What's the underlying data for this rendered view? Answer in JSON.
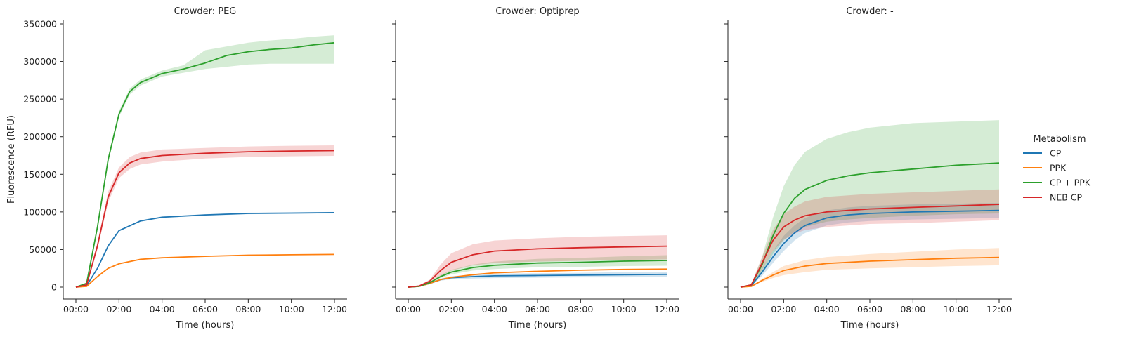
{
  "chart_data": [
    {
      "type": "line",
      "title": "Crowder: PEG",
      "xlabel": "Time (hours)",
      "ylabel": "Fluorescence (RFU)",
      "xlim": [
        0,
        12
      ],
      "ylim": [
        0,
        350000
      ],
      "x_tick_labels": [
        "00:00",
        "02:00",
        "04:00",
        "06:00",
        "08:00",
        "10:00",
        "12:00"
      ],
      "y_tick_labels": [
        "0",
        "50000",
        "100000",
        "150000",
        "200000",
        "250000",
        "300000",
        "350000"
      ],
      "grid": false,
      "series": [
        {
          "name": "CP",
          "color": "#1f77b4",
          "x": [
            0,
            0.5,
            1,
            1.5,
            2,
            3,
            4,
            6,
            8,
            10,
            12
          ],
          "y": [
            0,
            2000,
            25000,
            55000,
            75000,
            88000,
            93000,
            96000,
            98000,
            98500,
            99000
          ],
          "lower": [
            0,
            1500,
            24000,
            54000,
            74000,
            87000,
            92000,
            95000,
            97000,
            97500,
            98000
          ],
          "upper": [
            0,
            2500,
            26000,
            56000,
            76000,
            89000,
            94000,
            97000,
            99000,
            99500,
            100000
          ]
        },
        {
          "name": "PPK",
          "color": "#ff7f0e",
          "x": [
            0,
            0.5,
            1,
            1.5,
            2,
            3,
            4,
            6,
            8,
            10,
            12
          ],
          "y": [
            0,
            1000,
            14000,
            25000,
            31000,
            37000,
            39000,
            41000,
            42500,
            43000,
            43500
          ],
          "lower": [
            0,
            800,
            13500,
            24500,
            30500,
            36500,
            38500,
            40500,
            42000,
            42500,
            43000
          ],
          "upper": [
            0,
            1200,
            14500,
            25500,
            31500,
            37500,
            39500,
            41500,
            43000,
            43500,
            44000
          ]
        },
        {
          "name": "CP + PPK",
          "color": "#2ca02c",
          "x": [
            0,
            0.5,
            1,
            1.5,
            2,
            2.5,
            3,
            4,
            5,
            6,
            7,
            8,
            9,
            10,
            11,
            12
          ],
          "y": [
            0,
            5000,
            80000,
            170000,
            230000,
            260000,
            272000,
            284000,
            290000,
            298000,
            308000,
            313000,
            316000,
            318000,
            322000,
            325000
          ],
          "lower": [
            0,
            4000,
            77000,
            166000,
            226000,
            256000,
            268000,
            280000,
            285000,
            290000,
            293000,
            296000,
            297000,
            297000,
            297000,
            297000
          ],
          "upper": [
            0,
            6000,
            83000,
            174000,
            234000,
            264000,
            276000,
            288000,
            295000,
            315000,
            320000,
            325000,
            328000,
            330000,
            333000,
            335000
          ]
        },
        {
          "name": "NEB CP",
          "color": "#d62728",
          "x": [
            0,
            0.5,
            1,
            1.5,
            2,
            2.5,
            3,
            4,
            6,
            8,
            10,
            12
          ],
          "y": [
            0,
            3000,
            55000,
            120000,
            152000,
            165000,
            171000,
            175000,
            178000,
            180000,
            181000,
            181500
          ],
          "lower": [
            0,
            2000,
            50000,
            113000,
            145000,
            157000,
            163000,
            167000,
            171000,
            173000,
            174000,
            174500
          ],
          "upper": [
            0,
            4000,
            60000,
            127000,
            159000,
            173000,
            179000,
            183000,
            185000,
            187000,
            188000,
            188500
          ]
        }
      ]
    },
    {
      "type": "line",
      "title": "Crowder: Optiprep",
      "xlabel": "Time (hours)",
      "ylabel": "",
      "xlim": [
        0,
        12
      ],
      "ylim": [
        0,
        350000
      ],
      "x_tick_labels": [
        "00:00",
        "02:00",
        "04:00",
        "06:00",
        "08:00",
        "10:00",
        "12:00"
      ],
      "grid": false,
      "series": [
        {
          "name": "CP",
          "color": "#1f77b4",
          "x": [
            0,
            0.5,
            1,
            1.5,
            2,
            3,
            4,
            6,
            8,
            10,
            12
          ],
          "y": [
            0,
            1000,
            5000,
            10000,
            12500,
            14000,
            15000,
            15500,
            16000,
            16500,
            17000
          ],
          "lower": [
            0,
            700,
            4000,
            8500,
            10500,
            11500,
            12000,
            12500,
            13000,
            13000,
            13500
          ],
          "upper": [
            0,
            1300,
            6000,
            11500,
            14500,
            16500,
            18000,
            18500,
            19000,
            20000,
            20500
          ]
        },
        {
          "name": "PPK",
          "color": "#ff7f0e",
          "x": [
            0,
            0.5,
            1,
            1.5,
            2,
            3,
            4,
            6,
            8,
            10,
            12
          ],
          "y": [
            0,
            1000,
            5000,
            10000,
            13000,
            16500,
            19000,
            21000,
            22500,
            23500,
            24000
          ],
          "lower": [
            0,
            900,
            4700,
            9700,
            12700,
            16200,
            18700,
            20700,
            22200,
            23200,
            23700
          ],
          "upper": [
            0,
            1100,
            5300,
            10300,
            13300,
            16800,
            19300,
            21300,
            22800,
            23800,
            24300
          ]
        },
        {
          "name": "CP + PPK",
          "color": "#2ca02c",
          "x": [
            0,
            0.5,
            1,
            1.5,
            2,
            3,
            4,
            6,
            8,
            10,
            12
          ],
          "y": [
            0,
            1000,
            6000,
            14000,
            20000,
            26000,
            29000,
            32000,
            33000,
            34500,
            35500
          ],
          "lower": [
            0,
            800,
            5000,
            12000,
            17000,
            22000,
            24000,
            26500,
            27000,
            28000,
            28500
          ],
          "upper": [
            0,
            1200,
            7000,
            16000,
            23000,
            30000,
            34000,
            37500,
            39000,
            41000,
            42500
          ]
        },
        {
          "name": "NEB CP",
          "color": "#d62728",
          "x": [
            0,
            0.5,
            1,
            1.5,
            2,
            3,
            4,
            6,
            8,
            10,
            12
          ],
          "y": [
            0,
            1500,
            8000,
            22000,
            33000,
            43000,
            48000,
            51000,
            52500,
            53500,
            54500
          ],
          "lower": [
            0,
            1000,
            6000,
            15000,
            22000,
            29000,
            32000,
            34000,
            35000,
            36000,
            37000
          ],
          "upper": [
            0,
            2000,
            10000,
            30000,
            45000,
            57000,
            62000,
            65000,
            67000,
            68000,
            69000
          ]
        }
      ]
    },
    {
      "type": "line",
      "title": "Crowder: -",
      "xlabel": "Time (hours)",
      "ylabel": "",
      "xlim": [
        0,
        12
      ],
      "ylim": [
        0,
        350000
      ],
      "x_tick_labels": [
        "00:00",
        "02:00",
        "04:00",
        "06:00",
        "08:00",
        "10:00",
        "12:00"
      ],
      "grid": false,
      "series": [
        {
          "name": "CP",
          "color": "#1f77b4",
          "x": [
            0,
            0.5,
            1,
            1.5,
            2,
            2.5,
            3,
            4,
            5,
            6,
            8,
            10,
            12
          ],
          "y": [
            0,
            2000,
            20000,
            40000,
            58000,
            72000,
            82000,
            92000,
            96000,
            98000,
            100000,
            101000,
            102000
          ],
          "lower": [
            0,
            1500,
            15000,
            32000,
            48000,
            62000,
            72000,
            82000,
            86000,
            88000,
            90000,
            91000,
            92000
          ],
          "upper": [
            0,
            2500,
            25000,
            48000,
            68000,
            82000,
            92000,
            102000,
            106000,
            108000,
            110000,
            111000,
            112000
          ]
        },
        {
          "name": "PPK",
          "color": "#ff7f0e",
          "x": [
            0,
            0.5,
            1,
            1.5,
            2,
            3,
            4,
            6,
            8,
            10,
            12
          ],
          "y": [
            0,
            1000,
            9000,
            16000,
            22000,
            28000,
            31500,
            34500,
            36500,
            38500,
            39500
          ],
          "lower": [
            0,
            700,
            7000,
            12000,
            16000,
            20000,
            23000,
            25000,
            26500,
            28000,
            29000
          ],
          "upper": [
            0,
            1300,
            11000,
            20000,
            28000,
            36000,
            40000,
            44000,
            47000,
            50000,
            52000
          ]
        },
        {
          "name": "CP + PPK",
          "color": "#2ca02c",
          "x": [
            0,
            0.5,
            1,
            1.5,
            2,
            2.5,
            3,
            4,
            5,
            6,
            8,
            10,
            12
          ],
          "y": [
            0,
            3000,
            30000,
            68000,
            98000,
            118000,
            130000,
            142000,
            148000,
            152000,
            157000,
            162000,
            165000
          ],
          "lower": [
            0,
            2000,
            20000,
            44000,
            62000,
            74000,
            80000,
            87000,
            90000,
            92000,
            95000,
            97000,
            98000
          ],
          "upper": [
            0,
            4000,
            40000,
            92000,
            134000,
            162000,
            180000,
            197000,
            206000,
            212000,
            218000,
            220000,
            222000
          ]
        },
        {
          "name": "NEB CP",
          "color": "#d62728",
          "x": [
            0,
            0.5,
            1,
            1.5,
            2,
            2.5,
            3,
            4,
            5,
            6,
            8,
            10,
            12
          ],
          "y": [
            0,
            3000,
            32000,
            62000,
            80000,
            89000,
            95000,
            100000,
            102000,
            104000,
            106000,
            108000,
            110000
          ],
          "lower": [
            0,
            2000,
            24000,
            48000,
            63000,
            71000,
            76000,
            80000,
            82000,
            84000,
            85000,
            87000,
            89000
          ],
          "upper": [
            0,
            4000,
            40000,
            76000,
            97000,
            107000,
            114000,
            120000,
            122000,
            124000,
            126000,
            128000,
            130000
          ]
        }
      ]
    }
  ],
  "legend": {
    "title": "Metabolism",
    "placement": "right",
    "entries": [
      {
        "label": "CP",
        "color": "#1f77b4"
      },
      {
        "label": "PPK",
        "color": "#ff7f0e"
      },
      {
        "label": "CP + PPK",
        "color": "#2ca02c"
      },
      {
        "label": "NEB CP",
        "color": "#d62728"
      }
    ]
  }
}
